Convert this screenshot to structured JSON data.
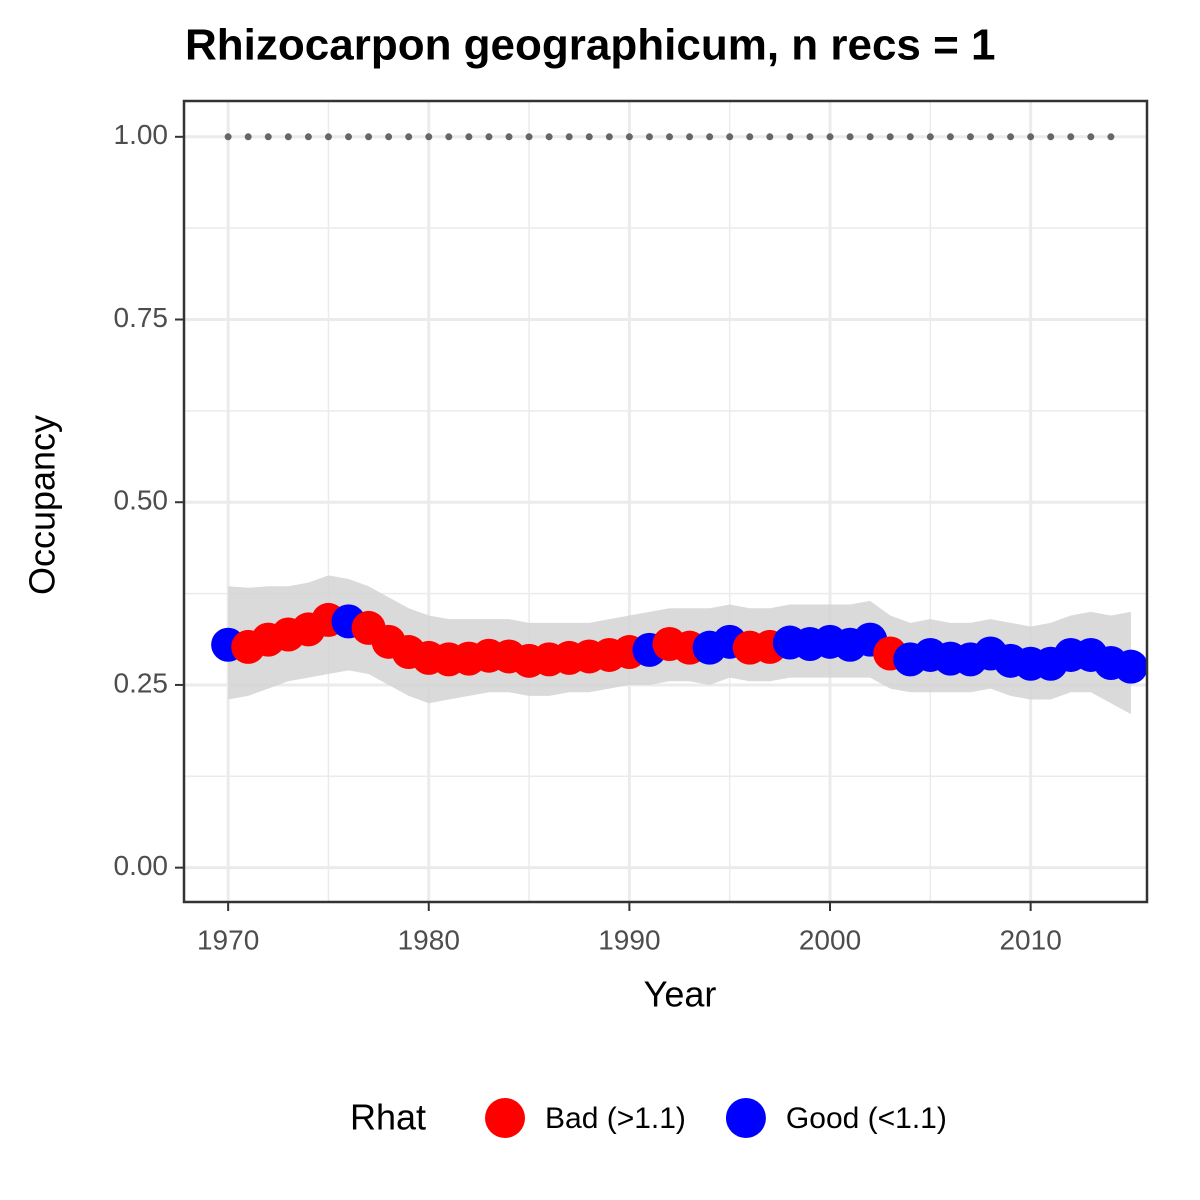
{
  "chart_data": {
    "type": "scatter",
    "title": "Rhizocarpon geographicum, n recs = 1",
    "x_label": "Year",
    "y_label": "Occupancy",
    "legend_title": "Rhat",
    "legend_position": "bottom",
    "grid": true,
    "x": [
      1970,
      1971,
      1972,
      1973,
      1974,
      1975,
      1976,
      1977,
      1978,
      1979,
      1980,
      1981,
      1982,
      1983,
      1984,
      1985,
      1986,
      1987,
      1988,
      1989,
      1990,
      1991,
      1992,
      1993,
      1994,
      1995,
      1996,
      1997,
      1998,
      1999,
      2000,
      2001,
      2002,
      2003,
      2004,
      2005,
      2006,
      2007,
      2008,
      2009,
      2010,
      2011,
      2012,
      2013,
      2014,
      2015
    ],
    "series": [
      {
        "name": "Bad (>1.1)",
        "color": "#ff0000",
        "values": [
          null,
          0.302,
          0.312,
          0.319,
          0.326,
          0.339,
          null,
          0.328,
          0.309,
          0.295,
          0.287,
          0.285,
          0.286,
          0.29,
          0.289,
          0.283,
          0.285,
          0.287,
          0.289,
          0.291,
          0.295,
          null,
          0.306,
          0.301,
          null,
          null,
          0.301,
          0.302,
          null,
          null,
          null,
          null,
          null,
          0.293,
          null,
          null,
          null,
          null,
          null,
          null,
          null,
          null,
          null,
          null,
          null,
          null
        ]
      },
      {
        "name": "Good (<1.1)",
        "color": "#0000ff",
        "values": [
          0.305,
          null,
          null,
          null,
          null,
          null,
          0.337,
          null,
          null,
          null,
          null,
          null,
          null,
          null,
          null,
          null,
          null,
          null,
          null,
          null,
          null,
          0.298,
          null,
          null,
          0.301,
          0.309,
          null,
          null,
          0.308,
          0.306,
          0.309,
          0.305,
          0.312,
          null,
          0.285,
          0.291,
          0.286,
          0.285,
          0.293,
          0.283,
          0.279,
          0.279,
          0.291,
          0.291,
          0.28,
          0.275
        ]
      }
    ],
    "ribbon": {
      "color": "#d3d3d3",
      "lower": [
        0.23,
        0.235,
        0.245,
        0.255,
        0.26,
        0.265,
        0.27,
        0.265,
        0.25,
        0.235,
        0.225,
        0.23,
        0.235,
        0.24,
        0.24,
        0.235,
        0.235,
        0.24,
        0.24,
        0.245,
        0.25,
        0.25,
        0.255,
        0.255,
        0.25,
        0.26,
        0.255,
        0.255,
        0.26,
        0.26,
        0.26,
        0.26,
        0.26,
        0.245,
        0.24,
        0.24,
        0.24,
        0.24,
        0.245,
        0.235,
        0.23,
        0.23,
        0.24,
        0.24,
        0.225,
        0.21
      ],
      "upper": [
        0.385,
        0.383,
        0.385,
        0.385,
        0.39,
        0.4,
        0.395,
        0.385,
        0.37,
        0.355,
        0.345,
        0.34,
        0.34,
        0.34,
        0.34,
        0.335,
        0.335,
        0.335,
        0.335,
        0.34,
        0.345,
        0.35,
        0.355,
        0.355,
        0.355,
        0.36,
        0.355,
        0.355,
        0.36,
        0.36,
        0.36,
        0.36,
        0.365,
        0.345,
        0.335,
        0.34,
        0.335,
        0.335,
        0.34,
        0.335,
        0.33,
        0.335,
        0.345,
        0.35,
        0.345,
        0.35
      ]
    },
    "reference_line": 1,
    "xlim": [
      1967.8,
      2015.8
    ],
    "xticks": [
      1970,
      1980,
      1990,
      2000,
      2010
    ],
    "ylim": [
      -0.047,
      1.049
    ],
    "yticks": [
      {
        "value": 0,
        "label": "0.00"
      },
      {
        "value": 0.25,
        "label": "0.25"
      },
      {
        "value": 0.5,
        "label": "0.50"
      },
      {
        "value": 0.75,
        "label": "0.75"
      },
      {
        "value": 1,
        "label": "1.00"
      }
    ]
  }
}
